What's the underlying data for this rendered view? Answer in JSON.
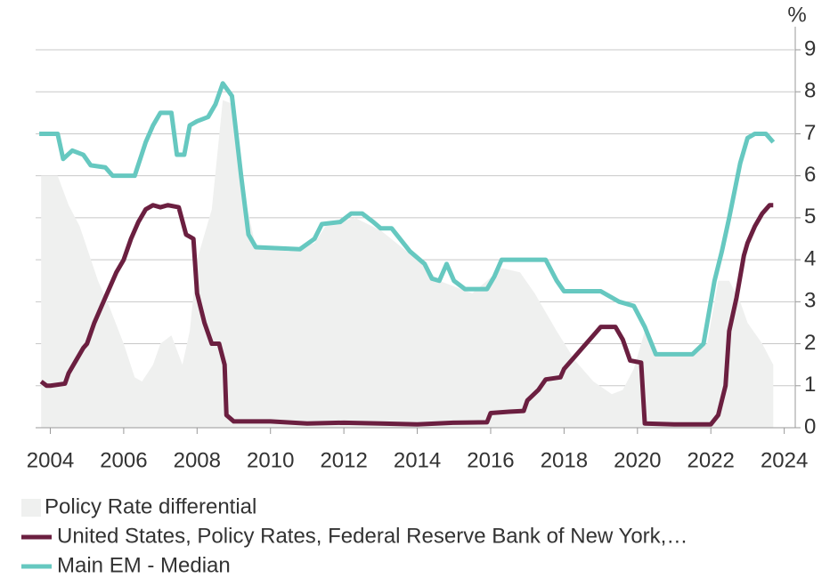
{
  "chart_data": {
    "type": "line",
    "y_unit": "%",
    "xlim": [
      2003.6,
      2024.3
    ],
    "xticks": [
      2004,
      2006,
      2008,
      2010,
      2012,
      2014,
      2016,
      2018,
      2020,
      2022,
      2024
    ],
    "ylim": [
      0,
      9
    ],
    "yticks": [
      0,
      1,
      2,
      3,
      4,
      5,
      6,
      7,
      8,
      9
    ],
    "grid": true,
    "legend": "bottom",
    "series": [
      {
        "name": "Policy Rate differential",
        "kind": "area",
        "color": "#eff0ef",
        "x": [
          2003.75,
          2004.2,
          2004.5,
          2004.8,
          2005.3,
          2005.6,
          2006.0,
          2006.3,
          2006.5,
          2006.8,
          2007.0,
          2007.3,
          2007.6,
          2007.8,
          2008.0,
          2008.4,
          2008.7,
          2009.0,
          2009.3,
          2009.6,
          2010.5,
          2011.2,
          2011.5,
          2012.3,
          2013.0,
          2014.0,
          2014.6,
          2015.5,
          2016.3,
          2016.8,
          2017.2,
          2017.8,
          2018.3,
          2018.8,
          2019.3,
          2019.6,
          2019.9,
          2020.2,
          2020.5,
          2021.5,
          2021.9,
          2022.2,
          2022.5,
          2022.8,
          2023.0,
          2023.4,
          2023.7
        ],
        "values": [
          6.0,
          6.0,
          5.3,
          4.8,
          3.5,
          2.9,
          2.0,
          1.2,
          1.1,
          1.5,
          2.0,
          2.2,
          1.5,
          2.3,
          4.0,
          5.2,
          7.8,
          7.7,
          5.5,
          4.3,
          4.2,
          4.4,
          4.8,
          5.0,
          4.7,
          4.0,
          3.5,
          3.2,
          3.8,
          3.7,
          3.2,
          2.3,
          1.6,
          1.1,
          0.8,
          0.9,
          1.4,
          2.3,
          1.7,
          1.7,
          2.0,
          3.5,
          3.5,
          3.0,
          2.5,
          2.0,
          1.5
        ]
      },
      {
        "name": "United States, Policy Rates, Federal Reserve Bank of New York,…",
        "kind": "line",
        "color": "#6b1f40",
        "x": [
          2003.75,
          2003.9,
          2004.0,
          2004.4,
          2004.5,
          2004.7,
          2004.9,
          2005.0,
          2005.2,
          2005.4,
          2005.6,
          2005.8,
          2006.0,
          2006.2,
          2006.4,
          2006.6,
          2006.8,
          2007.0,
          2007.2,
          2007.5,
          2007.7,
          2007.9,
          2008.0,
          2008.2,
          2008.4,
          2008.6,
          2008.75,
          2008.8,
          2009.0,
          2010.0,
          2011.0,
          2012.0,
          2013.0,
          2014.0,
          2015.0,
          2015.9,
          2016.0,
          2016.5,
          2016.9,
          2017.0,
          2017.3,
          2017.5,
          2017.9,
          2018.0,
          2018.3,
          2018.5,
          2018.8,
          2019.0,
          2019.4,
          2019.6,
          2019.8,
          2020.1,
          2020.2,
          2021.0,
          2022.0,
          2022.2,
          2022.4,
          2022.5,
          2022.7,
          2022.9,
          2023.0,
          2023.2,
          2023.4,
          2023.6,
          2023.7
        ],
        "values": [
          1.1,
          1.0,
          1.0,
          1.05,
          1.3,
          1.6,
          1.9,
          2.0,
          2.5,
          2.9,
          3.3,
          3.7,
          4.0,
          4.5,
          4.9,
          5.2,
          5.3,
          5.25,
          5.3,
          5.25,
          4.6,
          4.5,
          3.2,
          2.5,
          2.0,
          2.0,
          1.5,
          0.3,
          0.15,
          0.15,
          0.1,
          0.12,
          0.1,
          0.08,
          0.12,
          0.13,
          0.35,
          0.38,
          0.4,
          0.65,
          0.9,
          1.15,
          1.2,
          1.4,
          1.7,
          1.9,
          2.2,
          2.4,
          2.4,
          2.1,
          1.6,
          1.55,
          0.1,
          0.08,
          0.08,
          0.3,
          1.0,
          2.3,
          3.1,
          4.1,
          4.4,
          4.8,
          5.1,
          5.3,
          5.3
        ]
      },
      {
        "name": "Main EM - Median",
        "kind": "line",
        "color": "#66c8c0",
        "x": [
          2003.7,
          2004.2,
          2004.35,
          2004.6,
          2004.9,
          2005.1,
          2005.5,
          2005.7,
          2006.3,
          2006.6,
          2006.8,
          2007.0,
          2007.3,
          2007.45,
          2007.65,
          2007.8,
          2008.0,
          2008.3,
          2008.5,
          2008.7,
          2008.95,
          2009.2,
          2009.4,
          2009.6,
          2010.8,
          2011.2,
          2011.4,
          2011.9,
          2012.2,
          2012.5,
          2012.8,
          2013.0,
          2013.3,
          2013.8,
          2014.2,
          2014.4,
          2014.6,
          2014.8,
          2015.0,
          2015.3,
          2015.9,
          2016.1,
          2016.3,
          2016.7,
          2017.5,
          2017.8,
          2018.0,
          2018.5,
          2019.0,
          2019.5,
          2019.9,
          2020.2,
          2020.5,
          2021.5,
          2021.8,
          2022.1,
          2022.3,
          2022.5,
          2022.8,
          2023.0,
          2023.2,
          2023.5,
          2023.7
        ],
        "values": [
          7.0,
          7.0,
          6.4,
          6.6,
          6.5,
          6.25,
          6.2,
          6.0,
          6.0,
          6.8,
          7.2,
          7.5,
          7.5,
          6.5,
          6.5,
          7.2,
          7.3,
          7.4,
          7.7,
          8.2,
          7.9,
          6.0,
          4.6,
          4.3,
          4.25,
          4.5,
          4.85,
          4.9,
          5.1,
          5.1,
          4.9,
          4.75,
          4.75,
          4.2,
          3.9,
          3.55,
          3.5,
          3.9,
          3.5,
          3.3,
          3.3,
          3.6,
          4.0,
          4.0,
          4.0,
          3.5,
          3.25,
          3.25,
          3.25,
          3.0,
          2.9,
          2.4,
          1.75,
          1.75,
          2.0,
          3.5,
          4.2,
          5.0,
          6.3,
          6.9,
          7.0,
          7.0,
          6.8
        ]
      }
    ]
  }
}
